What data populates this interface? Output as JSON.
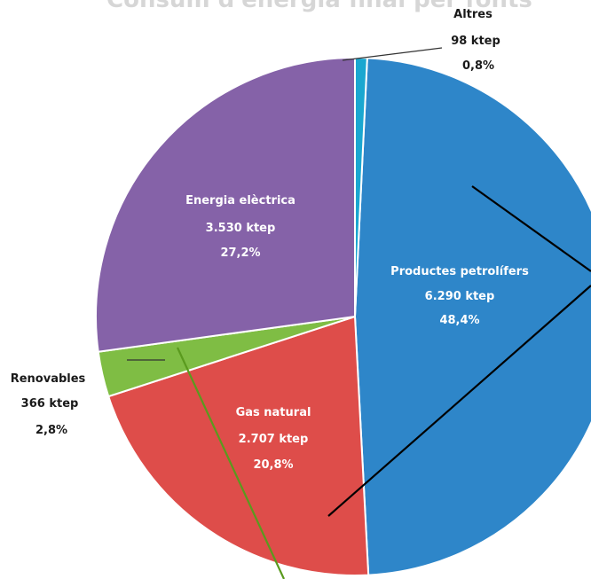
{
  "chart_data": {
    "type": "pie",
    "title": "",
    "slices": [
      {
        "label": "Productes petrolífers",
        "value_text": "6.290 ktep",
        "percent_text": "48,4%",
        "value": 6290,
        "percent": 48.4,
        "color": "#2e86c9"
      },
      {
        "label": "Gas natural",
        "value_text": "2.707 ktep",
        "percent_text": "20,8%",
        "value": 2707,
        "percent": 20.8,
        "color": "#de4d4a"
      },
      {
        "label": "Renovables",
        "value_text": "366 ktep",
        "percent_text": "2,8%",
        "value": 366,
        "percent": 2.8,
        "color": "#7fbd44"
      },
      {
        "label": "Energia elèctrica",
        "value_text": "3.530 ktep",
        "percent_text": "27,2%",
        "value": 3530,
        "percent": 27.2,
        "color": "#8562a8"
      },
      {
        "label": "Altres",
        "value_text": "98 ktep",
        "percent_text": "0,8%",
        "value": 98,
        "percent": 0.8,
        "color": "#1aa7d0"
      }
    ]
  }
}
